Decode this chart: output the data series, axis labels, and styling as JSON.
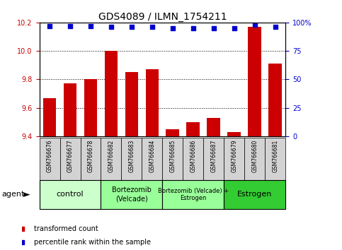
{
  "title": "GDS4089 / ILMN_1754211",
  "samples": [
    "GSM766676",
    "GSM766677",
    "GSM766678",
    "GSM766682",
    "GSM766683",
    "GSM766684",
    "GSM766685",
    "GSM766686",
    "GSM766687",
    "GSM766679",
    "GSM766680",
    "GSM766681"
  ],
  "bar_values": [
    9.67,
    9.77,
    9.8,
    10.0,
    9.85,
    9.87,
    9.45,
    9.5,
    9.53,
    9.43,
    10.17,
    9.91
  ],
  "percentile_values": [
    97,
    97,
    97,
    96,
    96,
    96,
    95,
    95,
    95,
    95,
    98,
    96
  ],
  "bar_color": "#cc0000",
  "percentile_color": "#0000cc",
  "ylim_left": [
    9.4,
    10.2
  ],
  "ylim_right": [
    0,
    100
  ],
  "yticks_left": [
    9.4,
    9.6,
    9.8,
    10.0,
    10.2
  ],
  "yticks_right": [
    0,
    25,
    50,
    75,
    100
  ],
  "ytick_labels_right": [
    "0",
    "25",
    "50",
    "75",
    "100%"
  ],
  "groups": [
    {
      "label": "control",
      "start": 0,
      "end": 3,
      "color": "#ccffcc",
      "fontsize": 8
    },
    {
      "label": "Bortezomib\n(Velcade)",
      "start": 3,
      "end": 6,
      "color": "#99ff99",
      "fontsize": 7
    },
    {
      "label": "Bortezomib (Velcade) +\nEstrogen",
      "start": 6,
      "end": 9,
      "color": "#99ff99",
      "fontsize": 6
    },
    {
      "label": "Estrogen",
      "start": 9,
      "end": 12,
      "color": "#33cc33",
      "fontsize": 8
    }
  ],
  "legend_items": [
    {
      "label": "transformed count",
      "color": "#cc0000"
    },
    {
      "label": "percentile rank within the sample",
      "color": "#0000cc"
    }
  ],
  "agent_label": "agent",
  "tick_label_color_left": "#cc0000",
  "tick_label_color_right": "#0000cc"
}
